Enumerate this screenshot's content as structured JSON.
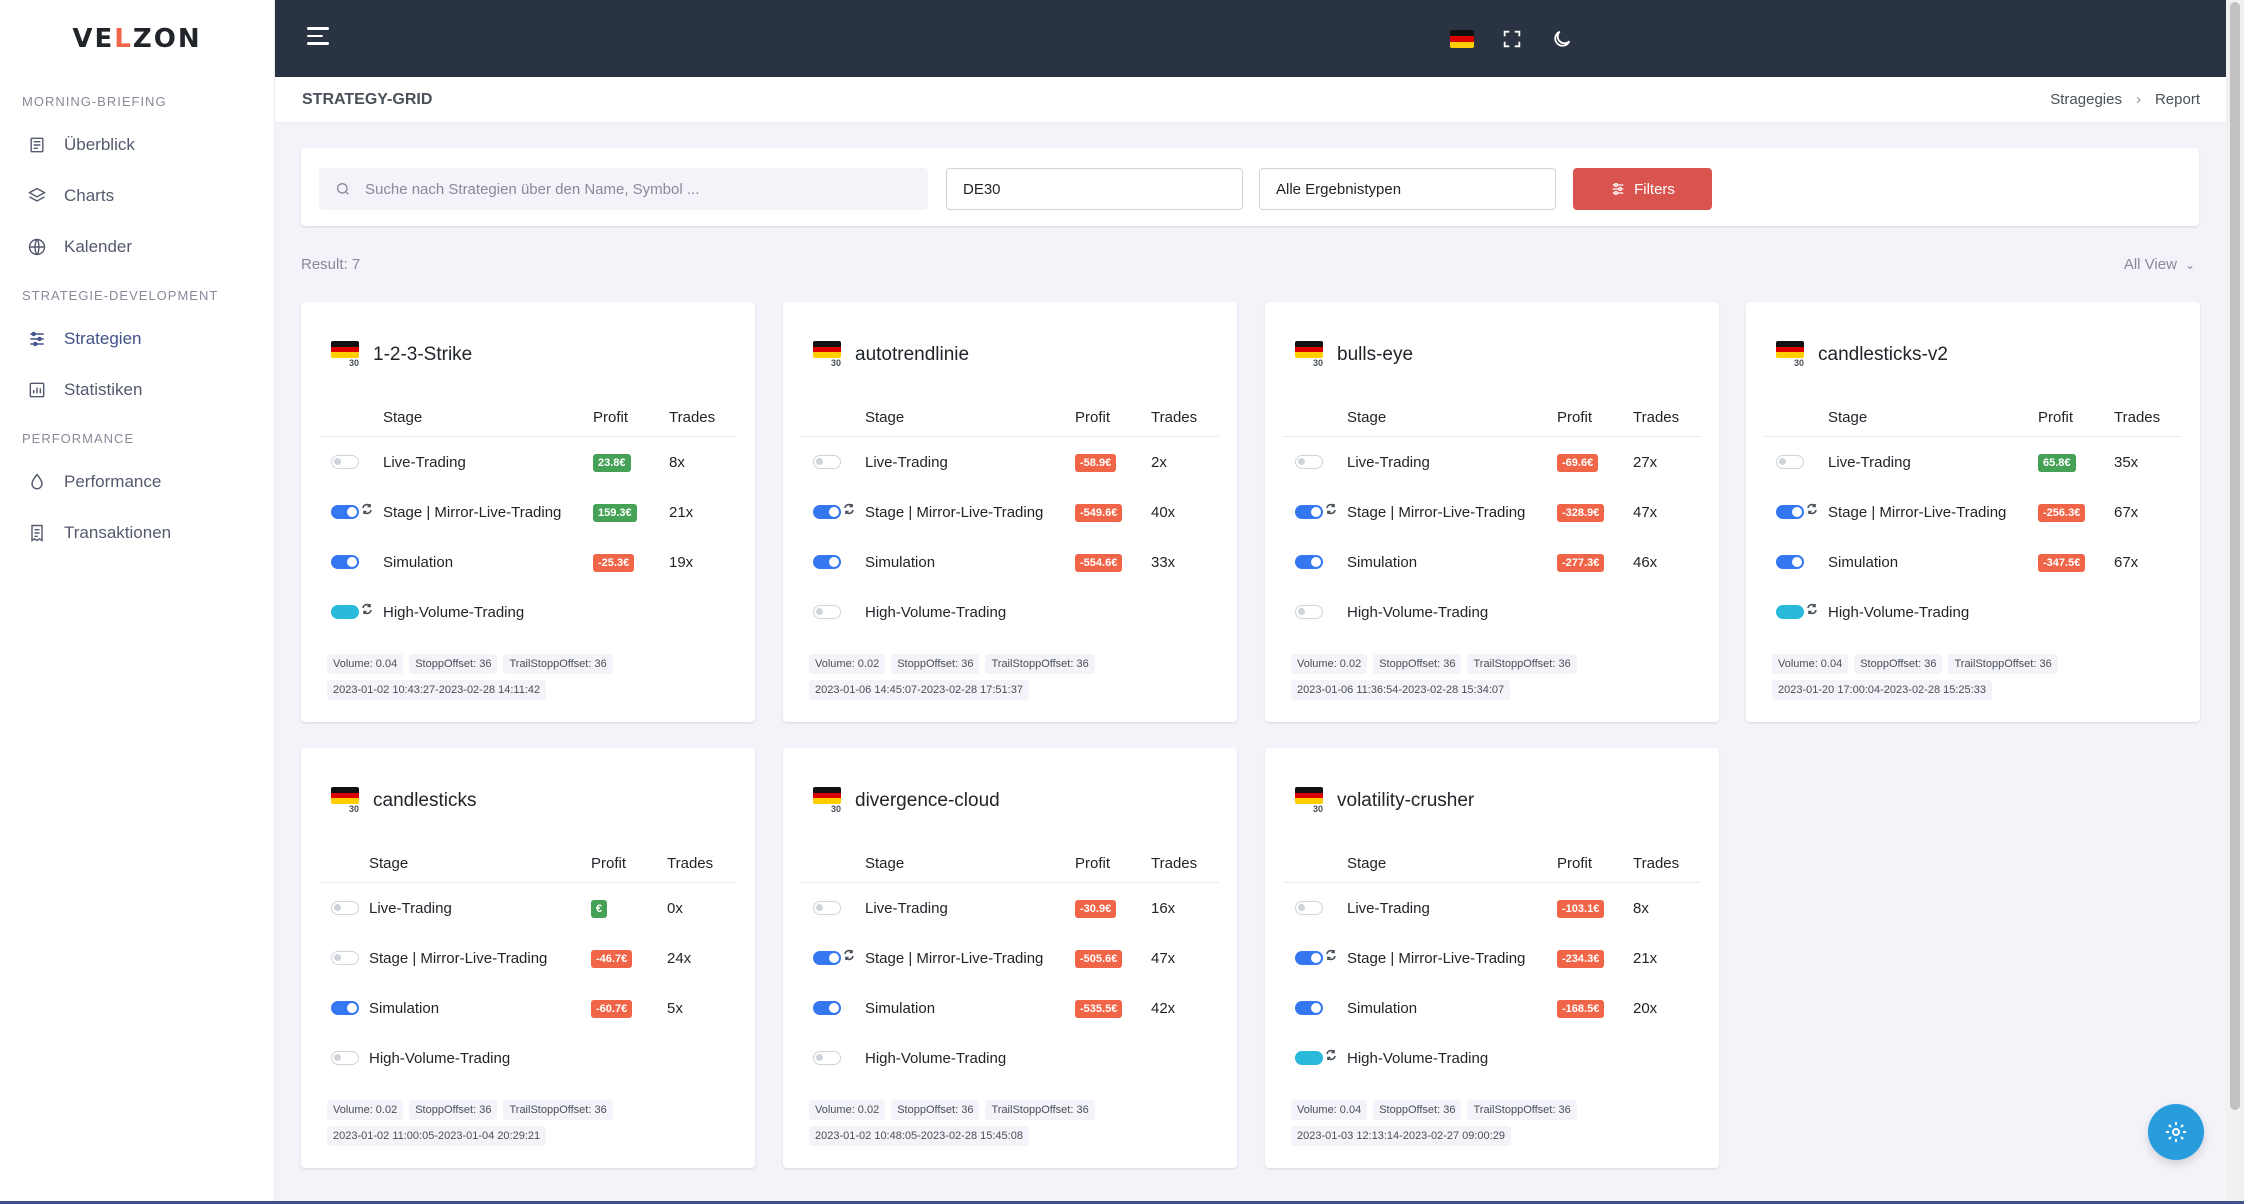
{
  "brand": {
    "logo_text_1": "VE",
    "logo_dot": "L",
    "logo_text_2": "ZON"
  },
  "sidebar": {
    "sections": [
      {
        "title": "MORNING-BRIEFING",
        "items": [
          {
            "label": "Überblick",
            "icon": "newspaper-icon"
          },
          {
            "label": "Charts",
            "icon": "layers-icon"
          },
          {
            "label": "Kalender",
            "icon": "globe-icon"
          }
        ]
      },
      {
        "title": "STRATEGIE-DEVELOPMENT",
        "items": [
          {
            "label": "Strategien",
            "icon": "sliders-icon",
            "active": true
          },
          {
            "label": "Statistiken",
            "icon": "bar-chart-icon"
          }
        ]
      },
      {
        "title": "PERFORMANCE",
        "items": [
          {
            "label": "Performance",
            "icon": "drop-icon"
          },
          {
            "label": "Transaktionen",
            "icon": "receipt-icon"
          }
        ]
      }
    ]
  },
  "header": {
    "page_title": "STRATEGY-GRID",
    "breadcrumb": [
      "Stragegies",
      "Report"
    ]
  },
  "filters": {
    "search_placeholder": "Suche nach Strategien über den Name, Symbol ...",
    "symbol_value": "DE30",
    "result_type_value": "Alle Ergebnistypen",
    "filter_button": "Filters"
  },
  "result_label": "Result: 7",
  "view_label": "All View",
  "table_headers": {
    "stage": "Stage",
    "profit": "Profit",
    "trades": "Trades"
  },
  "strategies": [
    {
      "name": "1-2-3-Strike",
      "flag_sub": "30",
      "rows": [
        {
          "toggle": "off",
          "mirror": false,
          "stage": "Live-Trading",
          "profit": "23.8€",
          "profit_sign": "pos",
          "trades": "8x"
        },
        {
          "toggle": "on",
          "mirror": true,
          "stage": "Stage | Mirror-Live-Trading",
          "profit": "159.3€",
          "profit_sign": "pos",
          "trades": "21x"
        },
        {
          "toggle": "on",
          "mirror": false,
          "stage": "Simulation",
          "profit": "-25.3€",
          "profit_sign": "neg",
          "trades": "19x"
        },
        {
          "toggle": "teal",
          "mirror": true,
          "stage": "High-Volume-Trading",
          "profit": "",
          "profit_sign": "",
          "trades": ""
        }
      ],
      "tags": [
        "Volume: 0.04",
        "StoppOffset: 36",
        "TrailStoppOffset: 36"
      ],
      "daterange": "2023-01-02 10:43:27-2023-02-28 14:11:42"
    },
    {
      "name": "autotrendlinie",
      "flag_sub": "30",
      "rows": [
        {
          "toggle": "off",
          "mirror": false,
          "stage": "Live-Trading",
          "profit": "-58.9€",
          "profit_sign": "neg",
          "trades": "2x"
        },
        {
          "toggle": "on",
          "mirror": true,
          "stage": "Stage | Mirror-Live-Trading",
          "profit": "-549.6€",
          "profit_sign": "neg",
          "trades": "40x"
        },
        {
          "toggle": "on",
          "mirror": false,
          "stage": "Simulation",
          "profit": "-554.6€",
          "profit_sign": "neg",
          "trades": "33x"
        },
        {
          "toggle": "off",
          "mirror": false,
          "stage": "High-Volume-Trading",
          "profit": "",
          "profit_sign": "",
          "trades": ""
        }
      ],
      "tags": [
        "Volume: 0.02",
        "StoppOffset: 36",
        "TrailStoppOffset: 36"
      ],
      "daterange": "2023-01-06 14:45:07-2023-02-28 17:51:37"
    },
    {
      "name": "bulls-eye",
      "flag_sub": "30",
      "rows": [
        {
          "toggle": "off",
          "mirror": false,
          "stage": "Live-Trading",
          "profit": "-69.6€",
          "profit_sign": "neg",
          "trades": "27x"
        },
        {
          "toggle": "on",
          "mirror": true,
          "stage": "Stage | Mirror-Live-Trading",
          "profit": "-328.9€",
          "profit_sign": "neg",
          "trades": "47x"
        },
        {
          "toggle": "on",
          "mirror": false,
          "stage": "Simulation",
          "profit": "-277.3€",
          "profit_sign": "neg",
          "trades": "46x"
        },
        {
          "toggle": "off",
          "mirror": false,
          "stage": "High-Volume-Trading",
          "profit": "",
          "profit_sign": "",
          "trades": ""
        }
      ],
      "tags": [
        "Volume: 0.02",
        "StoppOffset: 36",
        "TrailStoppOffset: 36"
      ],
      "daterange": "2023-01-06 11:36:54-2023-02-28 15:34:07"
    },
    {
      "name": "candlesticks-v2",
      "flag_sub": "30",
      "rows": [
        {
          "toggle": "off",
          "mirror": false,
          "stage": "Live-Trading",
          "profit": "65.8€",
          "profit_sign": "pos",
          "trades": "35x"
        },
        {
          "toggle": "on",
          "mirror": true,
          "stage": "Stage | Mirror-Live-Trading",
          "profit": "-256.3€",
          "profit_sign": "neg",
          "trades": "67x"
        },
        {
          "toggle": "on",
          "mirror": false,
          "stage": "Simulation",
          "profit": "-347.5€",
          "profit_sign": "neg",
          "trades": "67x"
        },
        {
          "toggle": "teal",
          "mirror": true,
          "stage": "High-Volume-Trading",
          "profit": "",
          "profit_sign": "",
          "trades": ""
        }
      ],
      "tags": [
        "Volume: 0.04",
        "StoppOffset: 36",
        "TrailStoppOffset: 36"
      ],
      "daterange": "2023-01-20 17:00:04-2023-02-28 15:25:33"
    },
    {
      "name": "candlesticks",
      "flag_sub": "30",
      "narrow": true,
      "rows": [
        {
          "toggle": "off",
          "mirror": false,
          "stage": "Live-Trading",
          "profit": "€",
          "profit_sign": "pos",
          "trades": "0x"
        },
        {
          "toggle": "off",
          "mirror": false,
          "stage": "Stage | Mirror-Live-Trading",
          "profit": "-46.7€",
          "profit_sign": "neg",
          "trades": "24x"
        },
        {
          "toggle": "on",
          "mirror": false,
          "stage": "Simulation",
          "profit": "-60.7€",
          "profit_sign": "neg",
          "trades": "5x"
        },
        {
          "toggle": "off",
          "mirror": false,
          "stage": "High-Volume-Trading",
          "profit": "",
          "profit_sign": "",
          "trades": ""
        }
      ],
      "tags": [
        "Volume: 0.02",
        "StoppOffset: 36",
        "TrailStoppOffset: 36"
      ],
      "daterange": "2023-01-02 11:00:05-2023-01-04 20:29:21"
    },
    {
      "name": "divergence-cloud",
      "flag_sub": "30",
      "rows": [
        {
          "toggle": "off",
          "mirror": false,
          "stage": "Live-Trading",
          "profit": "-30.9€",
          "profit_sign": "neg",
          "trades": "16x"
        },
        {
          "toggle": "on",
          "mirror": true,
          "stage": "Stage | Mirror-Live-Trading",
          "profit": "-505.6€",
          "profit_sign": "neg",
          "trades": "47x"
        },
        {
          "toggle": "on",
          "mirror": false,
          "stage": "Simulation",
          "profit": "-535.5€",
          "profit_sign": "neg",
          "trades": "42x"
        },
        {
          "toggle": "off",
          "mirror": false,
          "stage": "High-Volume-Trading",
          "profit": "",
          "profit_sign": "",
          "trades": ""
        }
      ],
      "tags": [
        "Volume: 0.02",
        "StoppOffset: 36",
        "TrailStoppOffset: 36"
      ],
      "daterange": "2023-01-02 10:48:05-2023-02-28 15:45:08"
    },
    {
      "name": "volatility-crusher",
      "flag_sub": "30",
      "rows": [
        {
          "toggle": "off",
          "mirror": false,
          "stage": "Live-Trading",
          "profit": "-103.1€",
          "profit_sign": "neg",
          "trades": "8x"
        },
        {
          "toggle": "on",
          "mirror": true,
          "stage": "Stage | Mirror-Live-Trading",
          "profit": "-234.3€",
          "profit_sign": "neg",
          "trades": "21x"
        },
        {
          "toggle": "on",
          "mirror": false,
          "stage": "Simulation",
          "profit": "-168.5€",
          "profit_sign": "neg",
          "trades": "20x"
        },
        {
          "toggle": "teal",
          "mirror": true,
          "stage": "High-Volume-Trading",
          "profit": "",
          "profit_sign": "",
          "trades": ""
        }
      ],
      "tags": [
        "Volume: 0.04",
        "StoppOffset: 36",
        "TrailStoppOffset: 36"
      ],
      "daterange": "2023-01-03 12:13:14-2023-02-27 09:00:29"
    }
  ],
  "colors": {
    "accent": "#405189",
    "danger_button": "#d9534f",
    "positive": "#45a155",
    "negative": "#f06548",
    "toggle_on": "#3577f1",
    "toggle_teal": "#29badb",
    "topbar": "#2a3342",
    "fab": "#299cdb"
  }
}
